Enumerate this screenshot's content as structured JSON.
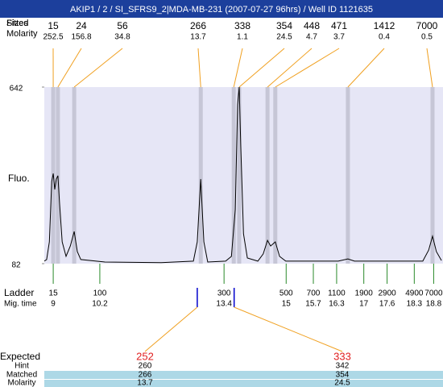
{
  "title": "AKIP1 / 2 / SI_SFRS9_2|MDA-MB-231 (2007-07-27 96hrs) / Well ID 1121635",
  "header_labels": {
    "fitted": "Fitted",
    "sizes": "Sizes",
    "molarity": "Molarity"
  },
  "chart_data": {
    "type": "electropherogram",
    "y_label": "Fluo.",
    "xlim": [
      8.77,
      19.04
    ],
    "ylim": [
      82,
      642
    ],
    "yticks": [
      82,
      642
    ],
    "trace": {
      "x": [
        8.77,
        8.83,
        8.9,
        8.96,
        9.0,
        9.04,
        9.08,
        9.12,
        9.16,
        9.23,
        9.33,
        9.44,
        9.54,
        9.62,
        9.71,
        10.33,
        11.78,
        12.61,
        12.71,
        12.8,
        12.88,
        12.98,
        13.44,
        13.59,
        13.69,
        13.75,
        13.79,
        13.83,
        13.9,
        14.0,
        14.27,
        14.41,
        14.52,
        14.6,
        14.72,
        14.83,
        14.99,
        16.34,
        16.59,
        16.76,
        18.52,
        18.67,
        18.77,
        18.87,
        19.0
      ],
      "y": [
        90,
        95,
        151,
        343,
        368,
        317,
        350,
        361,
        279,
        151,
        105,
        138,
        184,
        120,
        95,
        87,
        85,
        90,
        151,
        350,
        151,
        87,
        90,
        105,
        253,
        586,
        642,
        458,
        177,
        100,
        90,
        113,
        156,
        138,
        151,
        105,
        90,
        90,
        97,
        90,
        90,
        125,
        169,
        120,
        92
      ]
    },
    "peaks": {
      "mig_times": [
        9.0,
        9.12,
        9.54,
        12.8,
        13.65,
        13.79,
        14.52,
        14.72,
        16.59,
        18.77
      ],
      "sizes": [
        15,
        24,
        56,
        266,
        338,
        354,
        448,
        471,
        1412,
        7000
      ],
      "molarity": [
        252.5,
        156.8,
        34.8,
        13.7,
        1.1,
        24.5,
        4.7,
        3.7,
        0.4,
        0.5
      ]
    },
    "ladder": {
      "label": "Ladder",
      "time_label": "Mig. time",
      "sizes": [
        15,
        100,
        300,
        500,
        700,
        1100,
        1900,
        2900,
        4900,
        7000
      ],
      "mig_times": [
        9,
        10.2,
        13.4,
        15,
        15.7,
        16.3,
        17,
        17.6,
        18.3,
        18.8
      ]
    },
    "expected": {
      "labels": [
        "Expected",
        "Hint",
        "Matched",
        "Molarity"
      ],
      "mig_times": [
        12.71,
        13.66
      ],
      "expected": [
        252,
        333
      ],
      "hint": [
        260,
        342
      ],
      "matched": [
        266,
        354
      ],
      "molarity": [
        13.7,
        24.5
      ]
    }
  }
}
